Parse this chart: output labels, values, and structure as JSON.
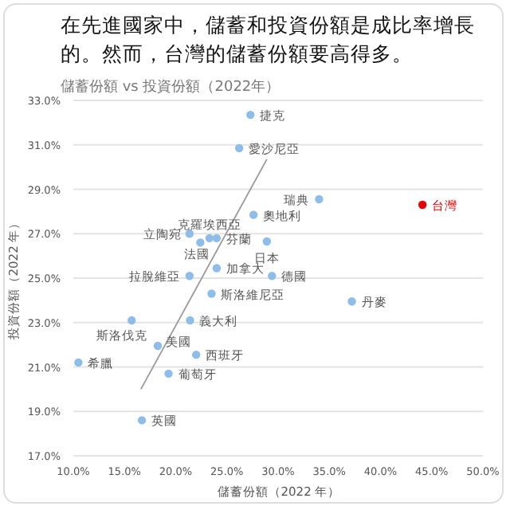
{
  "chart_data": {
    "type": "scatter",
    "title": "在先進國家中，儲蓄和投資份額是成比率增長的。然而，台灣的儲蓄份額要高得多。",
    "subtitle": "儲蓄份額 vs 投資份額（2022年）",
    "xlabel": "儲蓄份額（2022 年）",
    "ylabel": "投資份額（2022 年）",
    "xlim": [
      10,
      50
    ],
    "ylim": [
      17,
      33
    ],
    "xticks": [
      {
        "value": 10,
        "label": "10.0%"
      },
      {
        "value": 15,
        "label": "15.0%"
      },
      {
        "value": 20,
        "label": "20.0%"
      },
      {
        "value": 25,
        "label": "25.0%"
      },
      {
        "value": 30,
        "label": "30.0%"
      },
      {
        "value": 35,
        "label": "35.0%"
      },
      {
        "value": 40,
        "label": "40.0%"
      },
      {
        "value": 45,
        "label": "45.0%"
      },
      {
        "value": 50,
        "label": "50.0%"
      }
    ],
    "yticks": [
      {
        "value": 17,
        "label": "17.0%"
      },
      {
        "value": 19,
        "label": "19.0%"
      },
      {
        "value": 21,
        "label": "21.0%"
      },
      {
        "value": 23,
        "label": "23.0%"
      },
      {
        "value": 25,
        "label": "25.0%"
      },
      {
        "value": 27,
        "label": "27.0%"
      },
      {
        "value": 29,
        "label": "29.0%"
      },
      {
        "value": 31,
        "label": "31.0%"
      },
      {
        "value": 33,
        "label": "33.0%"
      }
    ],
    "grid": "y",
    "marker": "circle",
    "series": [
      {
        "type": "line",
        "marker": "none",
        "color": "#999999",
        "x": [
          16.6,
          28.9
        ],
        "values": [
          20.0,
          30.35
        ]
      },
      {
        "name": "捷克",
        "color": "#8dbde8",
        "x": [
          27.3
        ],
        "values": [
          32.35
        ]
      },
      {
        "name": "愛沙尼亞",
        "color": "#8dbde8",
        "x": [
          26.2
        ],
        "values": [
          30.85
        ]
      },
      {
        "name": "瑞典",
        "color": "#8dbde8",
        "x": [
          34.0
        ],
        "values": [
          28.55
        ]
      },
      {
        "name": "台灣",
        "color": "#e60000",
        "x": [
          44.1
        ],
        "values": [
          28.3
        ]
      },
      {
        "name": "奧地利",
        "color": "#8dbde8",
        "x": [
          27.6
        ],
        "values": [
          27.85
        ]
      },
      {
        "name": "立陶宛",
        "color": "#8dbde8",
        "x": [
          21.35
        ],
        "values": [
          27.0
        ]
      },
      {
        "name": "克羅埃西亞",
        "color": "#8dbde8",
        "x": [
          23.3
        ],
        "values": [
          26.8
        ]
      },
      {
        "name": "法國",
        "color": "#8dbde8",
        "x": [
          22.4
        ],
        "values": [
          26.6
        ]
      },
      {
        "name": "芬蘭",
        "color": "#8dbde8",
        "x": [
          24.0
        ],
        "values": [
          26.8
        ]
      },
      {
        "name": "日本",
        "color": "#8dbde8",
        "x": [
          28.9
        ],
        "values": [
          26.65
        ]
      },
      {
        "name": "加拿大",
        "color": "#8dbde8",
        "x": [
          24.0
        ],
        "values": [
          25.45
        ]
      },
      {
        "name": "德國",
        "color": "#8dbde8",
        "x": [
          29.4
        ],
        "values": [
          25.1
        ]
      },
      {
        "name": "拉脫維亞",
        "color": "#8dbde8",
        "x": [
          21.35
        ],
        "values": [
          25.1
        ]
      },
      {
        "name": "斯洛維尼亞",
        "color": "#8dbde8",
        "x": [
          23.5
        ],
        "values": [
          24.3
        ]
      },
      {
        "name": "丹麥",
        "color": "#8dbde8",
        "x": [
          37.2
        ],
        "values": [
          23.95
        ]
      },
      {
        "name": "義大利",
        "color": "#8dbde8",
        "x": [
          21.4
        ],
        "values": [
          23.1
        ]
      },
      {
        "name": "斯洛伐克",
        "color": "#8dbde8",
        "x": [
          15.7
        ],
        "values": [
          23.1
        ]
      },
      {
        "name": "美國",
        "color": "#8dbde8",
        "x": [
          18.25
        ],
        "values": [
          21.95
        ]
      },
      {
        "name": "西班牙",
        "color": "#8dbde8",
        "x": [
          22.0
        ],
        "values": [
          21.55
        ]
      },
      {
        "name": "希臘",
        "color": "#8dbde8",
        "x": [
          10.5
        ],
        "values": [
          21.2
        ]
      },
      {
        "name": "葡萄牙",
        "color": "#8dbde8",
        "x": [
          19.3
        ],
        "values": [
          20.7
        ]
      },
      {
        "name": "英國",
        "color": "#8dbde8",
        "x": [
          16.7
        ],
        "values": [
          18.6
        ]
      }
    ]
  }
}
